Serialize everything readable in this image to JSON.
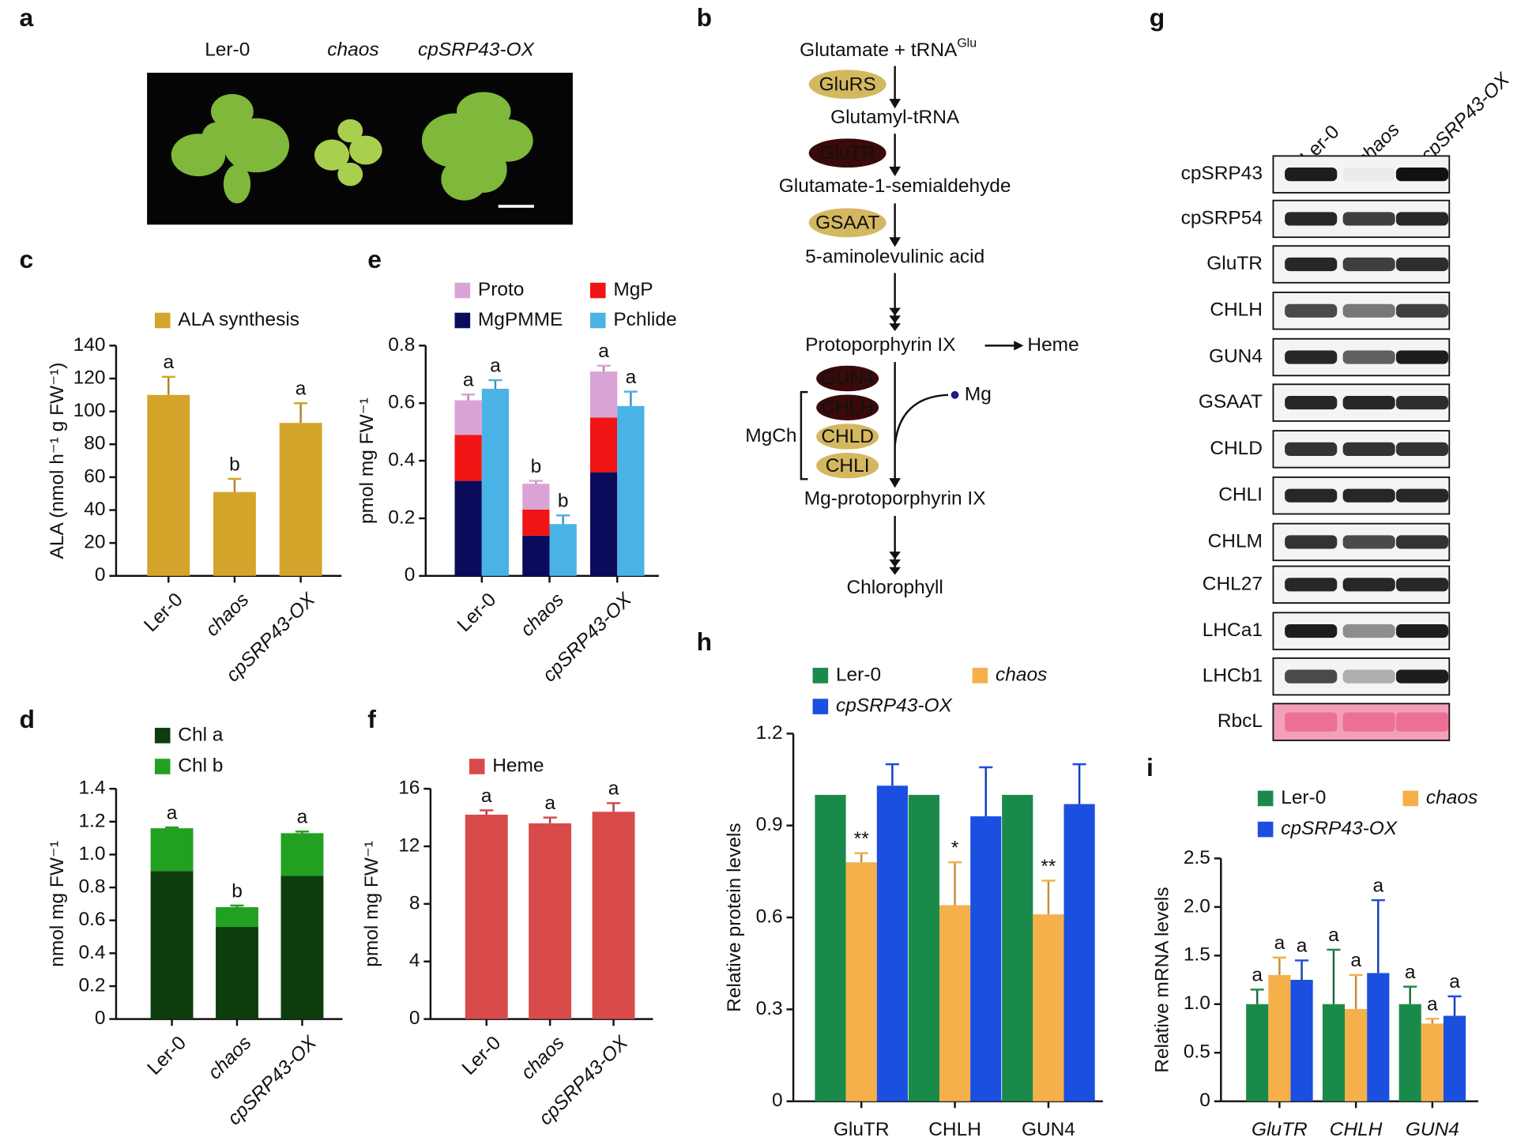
{
  "panel_labels": [
    "a",
    "b",
    "c",
    "d",
    "e",
    "f",
    "g",
    "h",
    "i"
  ],
  "photo": {
    "labels": [
      "Ler-0",
      "chaos",
      "cpSRP43-OX"
    ]
  },
  "pathway": {
    "substrate": "Glutamate + tRNA",
    "substrate_sup": "Glu",
    "steps": [
      "Glutamyl-tRNA",
      "Glutamate-1-semialdehyde",
      "5-aminolevulinic acid",
      "Protoporphyrin IX",
      "Mg-protoporphyrin IX",
      "Chlorophyll"
    ],
    "enzymes": [
      "GluRS",
      "GluTR",
      "GSAAT"
    ],
    "heme": "Heme",
    "mgch_subunits": [
      "GUN4",
      "CHLH",
      "CHLD",
      "CHLI"
    ],
    "mgch": "MgCh",
    "metal": "Mg"
  },
  "blot": {
    "lanes": [
      "Ler-0",
      "chaos",
      "cpSRP43-OX"
    ],
    "rows": [
      "cpSRP43",
      "cpSRP54",
      "GluTR",
      "CHLH",
      "GUN4",
      "GSAAT",
      "CHLD",
      "CHLI",
      "CHLM",
      "CHL27",
      "LHCa1",
      "LHCb1",
      "RbcL"
    ]
  },
  "chart_data": [
    {
      "type": "bar",
      "y_label": "ALA (nmol h⁻¹ g FW⁻¹)",
      "categories": [
        "Ler-0",
        "chaos",
        "cpSRP43-OX"
      ],
      "ylim": [
        0,
        140
      ],
      "yticks": [
        0,
        20,
        40,
        60,
        80,
        100,
        120,
        140
      ],
      "series": [
        {
          "name": "ALA synthesis",
          "color": "#d4a52b",
          "stack": 0,
          "values": [
            110,
            51,
            93
          ],
          "errors": [
            11,
            8,
            12
          ],
          "annotations": [
            "a",
            "b",
            "a"
          ]
        }
      ]
    },
    {
      "type": "bar",
      "y_label": "pmol mg FW⁻¹",
      "categories": [
        "Ler-0",
        "chaos",
        "cpSRP43-OX"
      ],
      "ylim": [
        0,
        0.8
      ],
      "yticks": [
        0,
        0.2,
        0.4,
        0.6,
        0.8
      ],
      "series": [
        {
          "name": "MgPMME",
          "color": "#0b0b5c",
          "stack": 0,
          "values": [
            0.33,
            0.14,
            0.36
          ],
          "errors": [
            0.05,
            0.02,
            0.07
          ]
        },
        {
          "name": "MgP",
          "color": "#f01414",
          "stack": 0,
          "values": [
            0.16,
            0.09,
            0.19
          ],
          "errors": [
            0.01,
            0.01,
            0.01
          ]
        },
        {
          "name": "Proto",
          "color": "#d9a3d5",
          "stack": 0,
          "values": [
            0.12,
            0.09,
            0.16
          ],
          "errors": [
            0.02,
            0.01,
            0.02
          ],
          "annotations": [
            "a",
            "b",
            "a"
          ]
        },
        {
          "name": "Pchlide",
          "color": "#4ab3e6",
          "stack": 1,
          "values": [
            0.65,
            0.18,
            0.59
          ],
          "errors": [
            0.03,
            0.03,
            0.05
          ],
          "annotations": [
            "a",
            "b",
            "a"
          ]
        }
      ]
    },
    {
      "type": "bar",
      "y_label": "nmol mg FW⁻¹",
      "categories": [
        "Ler-0",
        "chaos",
        "cpSRP43-OX"
      ],
      "ylim": [
        0,
        1.4
      ],
      "yticks": [
        0,
        0.2,
        0.4,
        0.6,
        0.8,
        {
          "value": 1,
          "label": "1.0"
        },
        1.2,
        1.4
      ],
      "series": [
        {
          "name": "Chl a",
          "color": "#0d3d0d",
          "stack": 0,
          "values": [
            0.9,
            0.56,
            0.87
          ],
          "errors": [
            0.02,
            0.04,
            0.02
          ]
        },
        {
          "name": "Chl b",
          "color": "#22a022",
          "stack": 0,
          "values": [
            0.26,
            0.12,
            0.26
          ],
          "errors": [
            0.005,
            0.01,
            0.01
          ],
          "annotations": [
            "a",
            "b",
            "a"
          ]
        }
      ]
    },
    {
      "type": "bar",
      "y_label": "pmol mg FW⁻¹",
      "categories": [
        "Ler-0",
        "chaos",
        "cpSRP43-OX"
      ],
      "ylim": [
        0,
        16
      ],
      "yticks": [
        0,
        4,
        8,
        12,
        16
      ],
      "series": [
        {
          "name": "Heme",
          "color": "#d94a4a",
          "stack": 0,
          "values": [
            14.2,
            13.6,
            14.4
          ],
          "errors": [
            0.3,
            0.4,
            0.6
          ],
          "annotations": [
            "a",
            "a",
            "a"
          ]
        }
      ]
    },
    {
      "type": "bar",
      "y_label": "Relative protein levels",
      "categories": [
        "GluTR",
        "CHLH",
        "GUN4"
      ],
      "ylim": [
        0,
        1.2
      ],
      "yticks": [
        0,
        0.3,
        0.6,
        0.9,
        1.2
      ],
      "series": [
        {
          "name": "Ler-0",
          "color": "#1a8a4a",
          "stack": 0,
          "values": [
            1,
            1,
            1
          ]
        },
        {
          "name": "chaos",
          "color": "#f5b04a",
          "stack": 1,
          "values": [
            0.78,
            0.64,
            0.61
          ],
          "errors": [
            0.03,
            0.14,
            0.11
          ],
          "annotations": [
            "**",
            "*",
            "**"
          ]
        },
        {
          "name": "cpSRP43-OX",
          "color": "#1a4fe0",
          "stack": 2,
          "values": [
            1.03,
            0.93,
            0.97
          ],
          "errors": [
            0.07,
            0.16,
            0.13
          ]
        }
      ]
    },
    {
      "type": "bar",
      "y_label": "Relative mRNA levels",
      "categories": [
        "GluTR",
        "CHLH",
        "GUN4"
      ],
      "ylim": [
        0,
        2.5
      ],
      "yticks": [
        0,
        0.5,
        {
          "value": 1,
          "label": "1.0"
        },
        1.5,
        {
          "value": 2,
          "label": "2.0"
        },
        2.5
      ],
      "series": [
        {
          "name": "Ler-0",
          "color": "#1a8a4a",
          "stack": 0,
          "values": [
            1,
            1,
            1
          ],
          "errors": [
            0.15,
            0.56,
            0.18
          ],
          "annotations": [
            "a",
            "a",
            "a"
          ]
        },
        {
          "name": "chaos",
          "color": "#f5b04a",
          "stack": 1,
          "values": [
            1.3,
            0.95,
            0.8
          ],
          "errors": [
            0.18,
            0.35,
            0.05
          ],
          "annotations": [
            "a",
            "a",
            "a"
          ]
        },
        {
          "name": "cpSRP43-OX",
          "color": "#1a4fe0",
          "stack": 2,
          "values": [
            1.25,
            1.32,
            0.88
          ],
          "errors": [
            0.2,
            0.75,
            0.2
          ],
          "annotations": [
            "a",
            "a",
            "a"
          ]
        }
      ]
    }
  ]
}
